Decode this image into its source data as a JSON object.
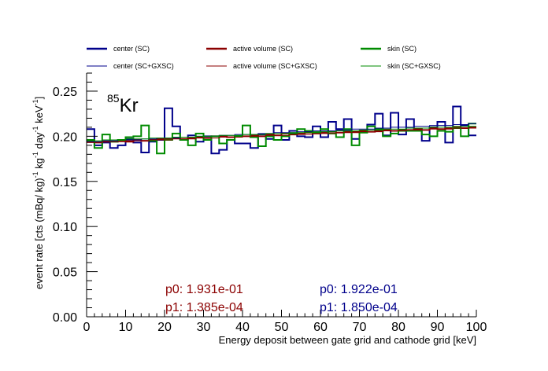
{
  "chart_data": {
    "type": "line",
    "xlabel": "Energy deposit between gate grid and cathode grid [keV]",
    "ylabel": "event rate [cts (mBq/ kg)^-1 kg^-1 day^-1 keV^-1]",
    "ylabel_parts": {
      "a": "event rate [cts (mBq/ kg)",
      "a_sup": "-1",
      "b": " kg",
      "b_sup": "-1",
      "c": " day",
      "c_sup": "-1",
      "d": " keV",
      "d_sup": "-1",
      "e": "]"
    },
    "xlim": [
      0,
      100
    ],
    "ylim": [
      0,
      0.27
    ],
    "xticks": [
      0,
      10,
      20,
      30,
      40,
      50,
      60,
      70,
      80,
      90,
      100
    ],
    "yticks": [
      0.0,
      0.05,
      0.1,
      0.15,
      0.2,
      0.25
    ],
    "xtick_labels": [
      "0",
      "10",
      "20",
      "30",
      "40",
      "50",
      "60",
      "70",
      "80",
      "90",
      "100"
    ],
    "ytick_labels": [
      "0.00",
      "0.05",
      "0.10",
      "0.15",
      "0.20",
      "0.25"
    ],
    "bin_edges_step": 2,
    "isotope": {
      "mass": "85",
      "symbol": "Kr"
    },
    "series": [
      {
        "name": "center (SC)",
        "color": "#00008b",
        "width": 2,
        "values": [
          0.208,
          0.19,
          0.193,
          0.187,
          0.19,
          0.197,
          0.193,
          0.182,
          0.194,
          0.196,
          0.231,
          0.211,
          0.196,
          0.201,
          0.194,
          0.2,
          0.181,
          0.185,
          0.196,
          0.192,
          0.192,
          0.187,
          0.202,
          0.197,
          0.212,
          0.196,
          0.206,
          0.2,
          0.199,
          0.211,
          0.199,
          0.216,
          0.208,
          0.219,
          0.197,
          0.205,
          0.213,
          0.225,
          0.201,
          0.226,
          0.202,
          0.219,
          0.208,
          0.195,
          0.21,
          0.216,
          0.193,
          0.233,
          0.212,
          0.201
        ]
      },
      {
        "name": "active volume (SC)",
        "color": "#8b0000",
        "width": 2,
        "values": [
          0.194,
          0.193,
          0.194,
          0.194,
          0.195,
          0.194,
          0.196,
          0.195,
          0.196,
          0.197,
          0.197,
          0.198,
          0.197,
          0.198,
          0.199,
          0.198,
          0.2,
          0.2,
          0.199,
          0.2,
          0.2,
          0.201,
          0.2,
          0.202,
          0.201,
          0.203,
          0.202,
          0.203,
          0.204,
          0.203,
          0.204,
          0.205,
          0.204,
          0.205,
          0.205,
          0.206,
          0.205,
          0.206,
          0.207,
          0.206,
          0.207,
          0.207,
          0.208,
          0.207,
          0.209,
          0.208,
          0.209,
          0.21,
          0.209,
          0.21
        ]
      },
      {
        "name": "skin (SC)",
        "color": "#008b00",
        "width": 2,
        "values": [
          0.196,
          0.187,
          0.202,
          0.194,
          0.196,
          0.199,
          0.2,
          0.212,
          0.195,
          0.181,
          0.196,
          0.203,
          0.196,
          0.19,
          0.203,
          0.196,
          0.2,
          0.192,
          0.196,
          0.2,
          0.212,
          0.199,
          0.189,
          0.2,
          0.196,
          0.2,
          0.203,
          0.208,
          0.206,
          0.204,
          0.208,
          0.203,
          0.199,
          0.208,
          0.19,
          0.204,
          0.211,
          0.208,
          0.2,
          0.203,
          0.206,
          0.206,
          0.206,
          0.202,
          0.2,
          0.206,
          0.205,
          0.209,
          0.2,
          0.214
        ]
      },
      {
        "name": "center (SC+GXSC)",
        "color": "#00008b",
        "width": 1,
        "values": [
          0.194,
          0.194,
          0.195,
          0.195,
          0.196,
          0.196,
          0.196,
          0.197,
          0.197,
          0.198,
          0.198,
          0.198,
          0.199,
          0.199,
          0.2,
          0.2,
          0.2,
          0.201,
          0.201,
          0.202,
          0.202,
          0.202,
          0.203,
          0.203,
          0.204,
          0.204,
          0.204,
          0.205,
          0.205,
          0.206,
          0.206,
          0.206,
          0.207,
          0.207,
          0.208,
          0.208,
          0.208,
          0.209,
          0.209,
          0.21,
          0.21,
          0.21,
          0.211,
          0.211,
          0.212,
          0.212,
          0.212,
          0.213,
          0.213,
          0.214
        ]
      },
      {
        "name": "active volume (SC+GXSC)",
        "color": "#8b0000",
        "width": 1,
        "values": [
          0.193,
          0.193,
          0.194,
          0.194,
          0.194,
          0.195,
          0.195,
          0.195,
          0.196,
          0.196,
          0.196,
          0.197,
          0.197,
          0.197,
          0.198,
          0.198,
          0.198,
          0.199,
          0.199,
          0.199,
          0.2,
          0.2,
          0.2,
          0.201,
          0.201,
          0.201,
          0.202,
          0.202,
          0.202,
          0.203,
          0.203,
          0.203,
          0.204,
          0.204,
          0.204,
          0.205,
          0.205,
          0.205,
          0.206,
          0.206,
          0.206,
          0.207,
          0.207,
          0.207,
          0.208,
          0.208,
          0.208,
          0.209,
          0.209,
          0.209
        ]
      },
      {
        "name": "skin (SC+GXSC)",
        "color": "#008b00",
        "width": 1,
        "values": [
          0.195,
          0.195,
          0.196,
          0.196,
          0.196,
          0.197,
          0.197,
          0.197,
          0.198,
          0.198,
          0.198,
          0.199,
          0.199,
          0.199,
          0.2,
          0.2,
          0.2,
          0.201,
          0.201,
          0.201,
          0.202,
          0.202,
          0.202,
          0.203,
          0.203,
          0.203,
          0.204,
          0.204,
          0.204,
          0.205,
          0.205,
          0.205,
          0.206,
          0.206,
          0.206,
          0.207,
          0.207,
          0.207,
          0.208,
          0.208,
          0.208,
          0.209,
          0.209,
          0.209,
          0.21,
          0.21,
          0.21,
          0.211,
          0.211,
          0.211
        ]
      }
    ],
    "fits": [
      {
        "color": "#8b0000",
        "p0": "p0: 1.931e-01",
        "p1": "p1: 1.385e-04"
      },
      {
        "color": "#00008b",
        "p0": "p0: 1.922e-01",
        "p1": "p1: 1.850e-04"
      }
    ],
    "legend_placement": "top",
    "grid": false
  }
}
